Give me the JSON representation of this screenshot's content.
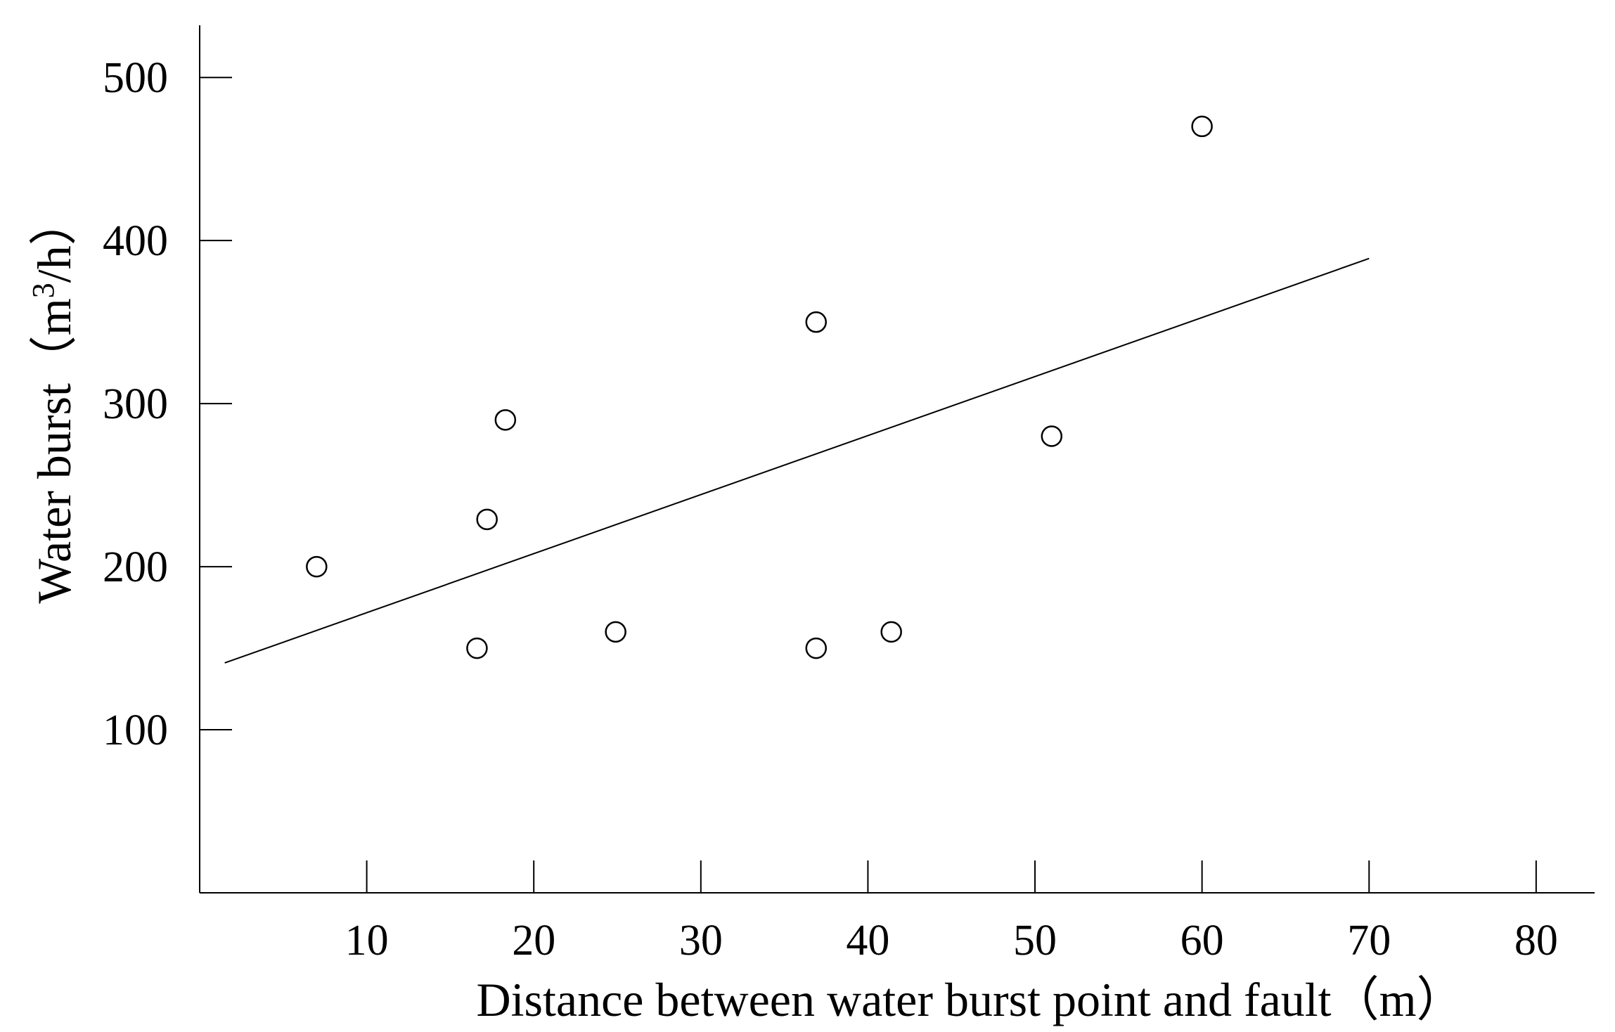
{
  "chart_data": {
    "type": "scatter",
    "title": "",
    "xlabel": "Distance between water burst point and fault（m）",
    "ylabel_parts": {
      "prefix": "Water burst（m",
      "superscript": "3",
      "suffix": "/h）"
    },
    "xlim": [
      0,
      83.5
    ],
    "ylim": [
      0,
      532
    ],
    "x_ticks": [
      10,
      20,
      30,
      40,
      50,
      60,
      70,
      80
    ],
    "y_ticks": [
      100,
      200,
      300,
      400,
      500
    ],
    "grid": false,
    "legend": "none",
    "series": [
      {
        "marker": "open-circle",
        "points": [
          {
            "x": 7,
            "y": 200
          },
          {
            "x": 16.6,
            "y": 150
          },
          {
            "x": 17.2,
            "y": 229
          },
          {
            "x": 18.3,
            "y": 290
          },
          {
            "x": 24.9,
            "y": 160
          },
          {
            "x": 36.9,
            "y": 350
          },
          {
            "x": 36.9,
            "y": 150
          },
          {
            "x": 41.4,
            "y": 160
          },
          {
            "x": 51,
            "y": 280
          },
          {
            "x": 60,
            "y": 470
          }
        ]
      }
    ],
    "trendline": {
      "x": [
        1.5,
        70
      ],
      "y": [
        141,
        389
      ]
    },
    "colors": {
      "axis": "#000000",
      "marker_stroke": "#000000",
      "marker_fill": "#ffffff",
      "trendline": "#000000"
    }
  }
}
